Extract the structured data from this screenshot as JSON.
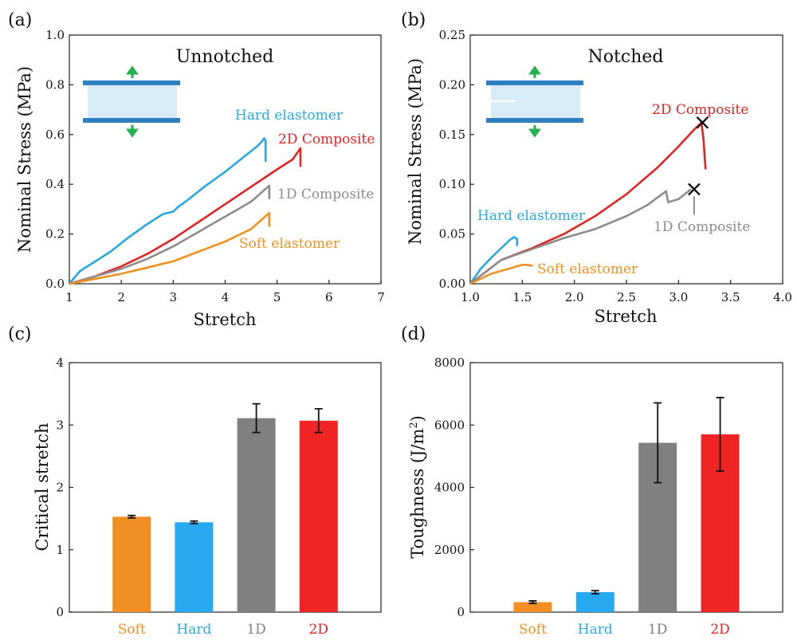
{
  "colors": {
    "hard": "#29a8e0",
    "composite2d": "#e02424",
    "composite1d": "#8c8c8c",
    "soft": "#f0901e",
    "bar_soft": "#f28f22",
    "bar_hard": "#27a9ef",
    "bar_1d": "#808080",
    "bar_2d": "#ef2424",
    "arrow": "#22b14c",
    "clamp": "#2e7fc0",
    "sample": "#d7ecf7"
  },
  "panels": {
    "a": {
      "label": "(a)",
      "title": "Unnotched",
      "xlabel": "Stretch",
      "ylabel": "Nominal Stress (MPa)"
    },
    "b": {
      "label": "(b)",
      "title": "Notched",
      "xlabel": "Stretch",
      "ylabel": "Nominal Stress (MPa)"
    },
    "c": {
      "label": "(c)",
      "ylabel": "Critical stretch"
    },
    "d": {
      "label": "(d)",
      "ylabel_main": "Toughness (J/m",
      "ylabel_sup": "2",
      "ylabel_end": ")"
    }
  },
  "chart_data": [
    {
      "id": "a",
      "type": "line",
      "title": "Unnotched",
      "xlabel": "Stretch",
      "ylabel": "Nominal Stress (MPa)",
      "xlim": [
        1,
        7
      ],
      "ylim": [
        0,
        1.0
      ],
      "xticks": [
        "1",
        "2",
        "3",
        "4",
        "5",
        "6",
        "7"
      ],
      "yticks": [
        "0.0",
        "0.2",
        "0.4",
        "0.6",
        "0.8",
        "1.0"
      ],
      "grid": false,
      "series": [
        {
          "name": "Hard elastomer",
          "color": "#29a8e0",
          "x": [
            1.0,
            1.2,
            1.5,
            1.8,
            2.1,
            2.5,
            2.8,
            3.0,
            3.1,
            3.3,
            3.6,
            4.0,
            4.3,
            4.6,
            4.7,
            4.75,
            4.78,
            4.78
          ],
          "y": [
            0.0,
            0.05,
            0.09,
            0.13,
            0.18,
            0.24,
            0.28,
            0.29,
            0.31,
            0.34,
            0.39,
            0.45,
            0.5,
            0.55,
            0.57,
            0.585,
            0.575,
            0.49
          ]
        },
        {
          "name": "2D Composite",
          "color": "#e02424",
          "x": [
            1.0,
            1.5,
            2.0,
            2.5,
            3.0,
            3.5,
            4.0,
            4.5,
            5.0,
            5.3,
            5.45,
            5.45
          ],
          "y": [
            0.0,
            0.03,
            0.07,
            0.12,
            0.18,
            0.25,
            0.32,
            0.39,
            0.46,
            0.5,
            0.545,
            0.47
          ]
        },
        {
          "name": "1D Composite",
          "color": "#8c8c8c",
          "x": [
            1.0,
            1.5,
            2.0,
            2.5,
            3.0,
            3.5,
            4.0,
            4.5,
            4.85,
            4.85
          ],
          "y": [
            0.0,
            0.03,
            0.06,
            0.1,
            0.15,
            0.21,
            0.27,
            0.33,
            0.395,
            0.34
          ]
        },
        {
          "name": "Soft elastomer",
          "color": "#f0901e",
          "x": [
            1.0,
            1.5,
            2.0,
            2.5,
            3.0,
            3.5,
            4.0,
            4.5,
            4.85,
            4.85
          ],
          "y": [
            0.0,
            0.02,
            0.04,
            0.065,
            0.09,
            0.13,
            0.17,
            0.22,
            0.285,
            0.23
          ]
        }
      ],
      "annotations": [
        {
          "text": "Hard elastomer",
          "series": "Hard elastomer"
        },
        {
          "text": "2D Composite",
          "series": "2D Composite"
        },
        {
          "text": "1D Composite",
          "series": "1D Composite"
        },
        {
          "text": "Soft elastomer",
          "series": "Soft elastomer"
        }
      ]
    },
    {
      "id": "b",
      "type": "line",
      "title": "Notched",
      "xlabel": "Stretch",
      "ylabel": "Nominal Stress (MPa)",
      "xlim": [
        1.0,
        4.0
      ],
      "ylim": [
        0,
        0.25
      ],
      "xticks": [
        "1.0",
        "1.5",
        "2.0",
        "2.5",
        "3.0",
        "3.5",
        "4.0"
      ],
      "yticks": [
        "0.00",
        "0.05",
        "0.10",
        "0.15",
        "0.20",
        "0.25"
      ],
      "grid": false,
      "series": [
        {
          "name": "Hard elastomer",
          "color": "#29a8e0",
          "x": [
            1.0,
            1.1,
            1.2,
            1.3,
            1.38,
            1.42,
            1.45,
            1.45
          ],
          "y": [
            0.0,
            0.015,
            0.026,
            0.036,
            0.044,
            0.047,
            0.045,
            0.038
          ]
        },
        {
          "name": "2D Composite",
          "color": "#e02424",
          "x": [
            1.0,
            1.3,
            1.6,
            1.9,
            2.2,
            2.5,
            2.8,
            3.0,
            3.15,
            3.22,
            3.24,
            3.26
          ],
          "y": [
            0.0,
            0.024,
            0.036,
            0.05,
            0.068,
            0.09,
            0.117,
            0.138,
            0.155,
            0.162,
            0.145,
            0.115
          ]
        },
        {
          "name": "1D Composite",
          "color": "#8c8c8c",
          "x": [
            1.0,
            1.3,
            1.6,
            1.9,
            2.2,
            2.5,
            2.7,
            2.88,
            2.9,
            3.0,
            3.12
          ],
          "y": [
            0.0,
            0.024,
            0.035,
            0.046,
            0.055,
            0.068,
            0.079,
            0.093,
            0.082,
            0.085,
            0.095
          ]
        },
        {
          "name": "Soft elastomer",
          "color": "#f0901e",
          "x": [
            1.0,
            1.2,
            1.4,
            1.5,
            1.55,
            1.6
          ],
          "y": [
            0.0,
            0.01,
            0.016,
            0.019,
            0.019,
            0.018
          ]
        }
      ],
      "markers": [
        {
          "type": "cross",
          "x": 3.23,
          "y": 0.162
        },
        {
          "type": "cross",
          "x": 3.15,
          "y": 0.095
        }
      ],
      "annotations": [
        {
          "text": "Hard elastomer",
          "series": "Hard elastomer"
        },
        {
          "text": "2D Composite",
          "series": "2D Composite"
        },
        {
          "text": "1D Composite",
          "series": "1D Composite"
        },
        {
          "text": "Soft elastomer",
          "series": "Soft elastomer"
        }
      ]
    },
    {
      "id": "c",
      "type": "bar",
      "ylabel": "Critical stretch",
      "ylim": [
        0,
        4
      ],
      "yticks": [
        "0",
        "1",
        "2",
        "3",
        "4"
      ],
      "categories": [
        "Soft",
        "Hard",
        "1D",
        "2D"
      ],
      "values": [
        1.53,
        1.44,
        3.11,
        3.07
      ],
      "errors": [
        0.02,
        0.02,
        0.23,
        0.19
      ],
      "colors": [
        "#f28f22",
        "#27a9ef",
        "#808080",
        "#ef2424"
      ],
      "label_colors": [
        "#f0901e",
        "#29a8e0",
        "#808080",
        "#e02424"
      ]
    },
    {
      "id": "d",
      "type": "bar",
      "ylabel": "Toughness (J/m2)",
      "ylim": [
        0,
        8000
      ],
      "yticks": [
        "0",
        "2000",
        "4000",
        "6000",
        "8000"
      ],
      "categories": [
        "Soft",
        "Hard",
        "1D",
        "2D"
      ],
      "values": [
        320,
        640,
        5430,
        5700
      ],
      "errors": [
        40,
        50,
        1280,
        1180
      ],
      "colors": [
        "#f28f22",
        "#27a9ef",
        "#808080",
        "#ef2424"
      ],
      "label_colors": [
        "#f0901e",
        "#29a8e0",
        "#808080",
        "#e02424"
      ]
    }
  ]
}
